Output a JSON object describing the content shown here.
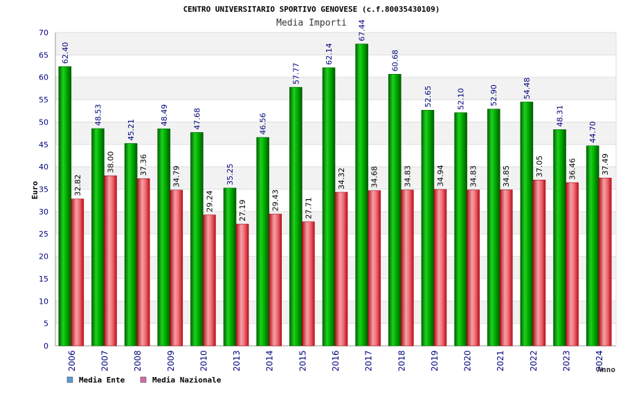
{
  "chart_data": {
    "type": "bar",
    "title": "CENTRO UNIVERSITARIO SPORTIVO GENOVESE (c.f.80035430109)",
    "subtitle": "Media Importi",
    "xlabel": "Anno",
    "ylabel": "Euro",
    "ylim": [
      0,
      70
    ],
    "ytick_step": 5,
    "grid": true,
    "legend_position": "bottom-left",
    "categories": [
      "2006",
      "2007",
      "2008",
      "2009",
      "2010",
      "2013",
      "2014",
      "2015",
      "2016",
      "2017",
      "2018",
      "2019",
      "2020",
      "2021",
      "2022",
      "2023",
      "2024"
    ],
    "series": [
      {
        "name": "Media Ente",
        "color": "#00aa00",
        "legend_color": "#5b9bd5",
        "values": [
          62.4,
          48.53,
          45.21,
          48.49,
          47.68,
          35.25,
          46.56,
          57.77,
          62.14,
          67.44,
          60.68,
          52.65,
          52.1,
          52.9,
          54.48,
          48.31,
          44.7
        ],
        "labels": [
          "62.40",
          "48.53",
          "45.21",
          "48.49",
          "47.68",
          "35.25",
          "46.56",
          "57.77",
          "62.14",
          "67.44",
          "60.68",
          "52.65",
          "52.10",
          "52.90",
          "54.48",
          "48.31",
          "44.70"
        ]
      },
      {
        "name": "Media Nazionale",
        "color": "#e8202a",
        "legend_color": "#d66aa8",
        "values": [
          32.82,
          38.0,
          37.36,
          34.79,
          29.24,
          27.19,
          29.43,
          27.71,
          34.32,
          34.68,
          34.83,
          34.94,
          34.83,
          34.85,
          37.05,
          36.46,
          37.49
        ],
        "labels": [
          "32.82",
          "38.00",
          "37.36",
          "34.79",
          "29.24",
          "27.19",
          "29.43",
          "27.71",
          "34.32",
          "34.68",
          "34.83",
          "34.94",
          "34.83",
          "34.85",
          "37.05",
          "36.46",
          "37.49"
        ]
      }
    ]
  }
}
